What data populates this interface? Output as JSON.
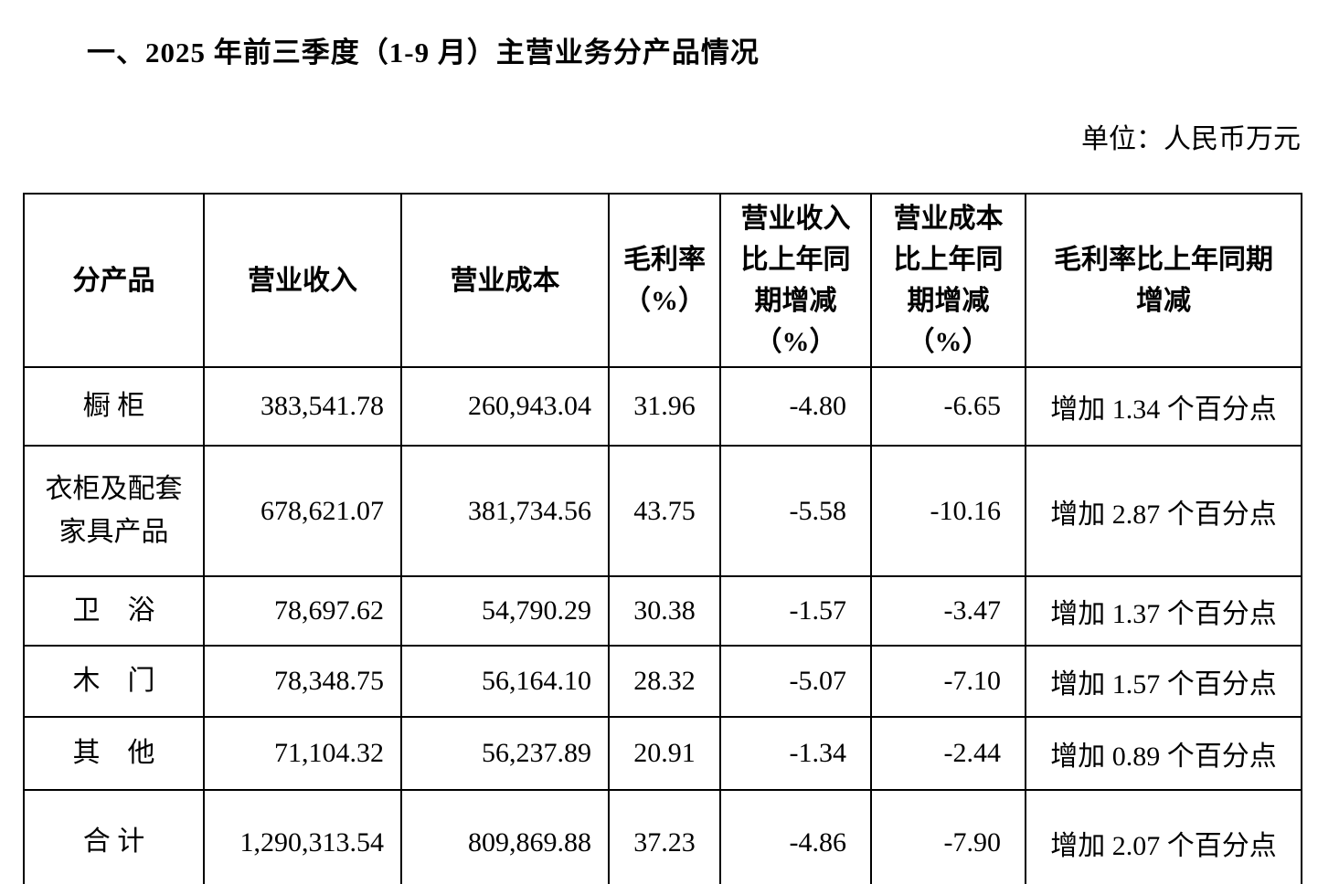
{
  "page": {
    "title": "一、2025 年前三季度（1-9 月）主营业务分产品情况",
    "unit_label": "单位：人民币万元"
  },
  "table": {
    "headers": [
      "分产品",
      "营业收入",
      "营业成本",
      "毛利率\n（%）",
      "营业收入\n比上年同\n期增减\n（%）",
      "营业成本\n比上年同\n期增减\n（%）",
      "毛利率比上年同期\n增减"
    ],
    "rows": [
      {
        "cells": [
          "橱 柜",
          "383,541.78",
          "260,943.04",
          "31.96",
          "-4.80",
          "-6.65",
          "增加 1.34 个百分点"
        ]
      },
      {
        "cells": [
          "衣柜及配套\n家具产品",
          "678,621.07",
          "381,734.56",
          "43.75",
          "-5.58",
          "-10.16",
          "增加 2.87 个百分点"
        ]
      },
      {
        "cells": [
          "卫　浴",
          "78,697.62",
          "54,790.29",
          "30.38",
          "-1.57",
          "-3.47",
          "增加 1.37 个百分点"
        ]
      },
      {
        "cells": [
          "木　门",
          "78,348.75",
          "56,164.10",
          "28.32",
          "-5.07",
          "-7.10",
          "增加 1.57 个百分点"
        ]
      },
      {
        "cells": [
          "其　他",
          "71,104.32",
          "56,237.89",
          "20.91",
          "-1.34",
          "-2.44",
          "增加 0.89 个百分点"
        ]
      },
      {
        "cells": [
          "合 计",
          "1,290,313.54",
          "809,869.88",
          "37.23",
          "-4.86",
          "-7.90",
          "增加 2.07 个百分点"
        ]
      }
    ]
  }
}
